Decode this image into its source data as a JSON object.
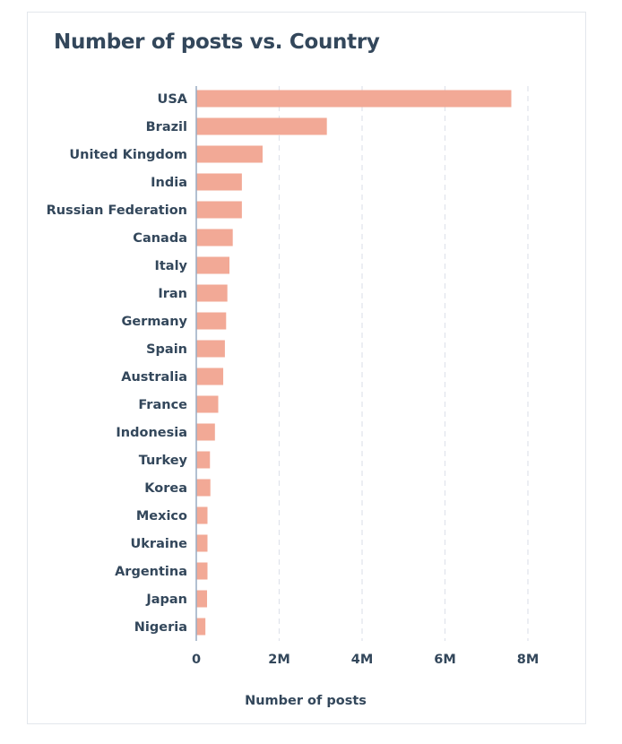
{
  "colors": {
    "bar": "#f2a996",
    "grid": "#dfe3eb",
    "axis": "#99acc2",
    "text": "#33475b",
    "border": "#e3e7ec"
  },
  "chart_data": {
    "type": "bar",
    "orientation": "horizontal",
    "title": "Number of posts vs. Country",
    "xlabel": "Number of posts",
    "ylabel": "",
    "categories": [
      "USA",
      "Brazil",
      "United Kingdom",
      "India",
      "Russian Federation",
      "Canada",
      "Italy",
      "Iran",
      "Germany",
      "Spain",
      "Australia",
      "France",
      "Indonesia",
      "Turkey",
      "Korea",
      "Mexico",
      "Ukraine",
      "Argentina",
      "Japan",
      "Nigeria"
    ],
    "series": [
      {
        "values": [
          7600000,
          3150000,
          1600000,
          1100000,
          1100000,
          880000,
          800000,
          750000,
          720000,
          690000,
          650000,
          530000,
          450000,
          330000,
          340000,
          270000,
          270000,
          270000,
          260000,
          220000
        ]
      }
    ],
    "xlim": [
      0,
      8000000
    ],
    "x_ticks": [
      {
        "value": 0,
        "label": "0"
      },
      {
        "value": 2000000,
        "label": "2M"
      },
      {
        "value": 4000000,
        "label": "4M"
      },
      {
        "value": 6000000,
        "label": "6M"
      },
      {
        "value": 8000000,
        "label": "8M"
      }
    ],
    "grid": "vertical dashed",
    "legend": "none"
  }
}
